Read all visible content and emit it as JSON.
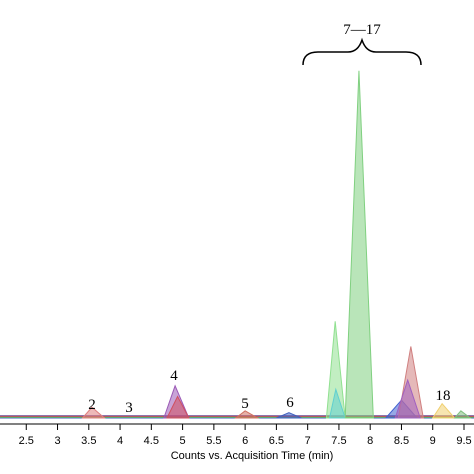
{
  "chart_data": {
    "type": "area",
    "xlabel": "Counts vs. Acquisition Time (min)",
    "xlim": [
      2.08,
      9.66
    ],
    "ylim": [
      0,
      100
    ],
    "xticks": [
      2.5,
      3,
      3.5,
      4,
      4.5,
      5,
      5.5,
      6,
      6.5,
      7,
      7.5,
      8,
      8.5,
      9,
      9.5
    ],
    "annotations": [
      "2",
      "3",
      "4",
      "5",
      "6",
      "7—17",
      "18"
    ],
    "series": [
      {
        "color": "#e08080",
        "x": [
          3.4,
          3.55,
          3.75
        ],
        "values": [
          0,
          3,
          0
        ]
      },
      {
        "color": "#9b59b6",
        "x": [
          4.7,
          4.88,
          5.1
        ],
        "values": [
          0,
          9,
          0
        ]
      },
      {
        "color": "#d05060",
        "x": [
          4.75,
          4.92,
          5.1
        ],
        "values": [
          0,
          6,
          0
        ]
      },
      {
        "color": "#d07060",
        "x": [
          5.85,
          6.0,
          6.2
        ],
        "values": [
          0,
          2,
          0
        ]
      },
      {
        "color": "#4060c0",
        "x": [
          6.5,
          6.7,
          6.9
        ],
        "values": [
          0,
          1.5,
          0
        ]
      },
      {
        "color": "#90e090",
        "x": [
          7.3,
          7.44,
          7.6
        ],
        "values": [
          0,
          27,
          0
        ]
      },
      {
        "color": "#60d0d0",
        "x": [
          7.35,
          7.45,
          7.6
        ],
        "values": [
          0,
          8,
          0
        ]
      },
      {
        "color": "#80d080",
        "x": [
          7.6,
          7.82,
          8.05
        ],
        "values": [
          0,
          97,
          0
        ]
      },
      {
        "color": "#4060d0",
        "x": [
          8.25,
          8.5,
          8.75
        ],
        "values": [
          0,
          5,
          0
        ]
      },
      {
        "color": "#d08080",
        "x": [
          8.45,
          8.65,
          8.85
        ],
        "values": [
          0,
          20,
          0
        ]
      },
      {
        "color": "#a060c0",
        "x": [
          8.4,
          8.6,
          8.8
        ],
        "values": [
          0,
          10.6,
          0
        ]
      },
      {
        "color": "#f0d070",
        "x": [
          9.0,
          9.15,
          9.35
        ],
        "values": [
          0,
          4,
          0
        ]
      },
      {
        "color": "#80c080",
        "x": [
          9.35,
          9.45,
          9.6
        ],
        "values": [
          0,
          2,
          0
        ]
      }
    ]
  }
}
